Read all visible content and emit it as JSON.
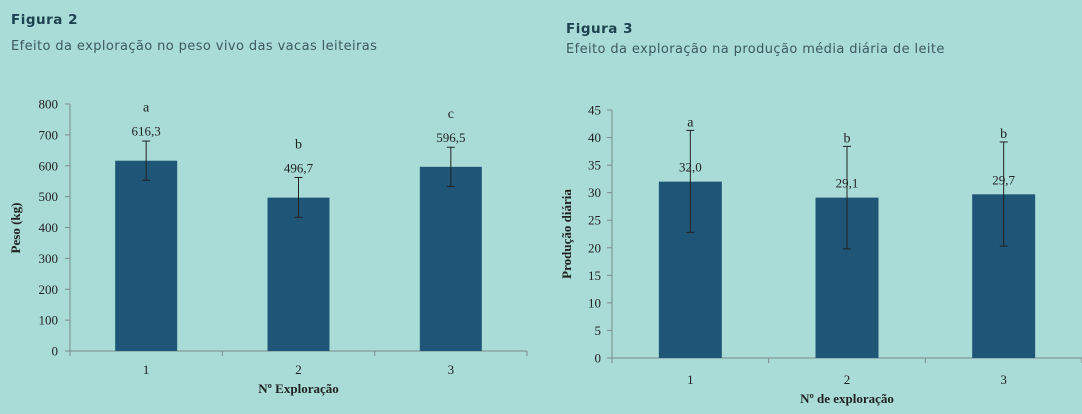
{
  "figures": [
    {
      "heading": "Figura 2",
      "subtitle": "Efeito da exploração no peso vivo das vacas leiteiras"
    },
    {
      "heading": "Figura 3",
      "subtitle": "Efeito da exploração na produção média diária de leite"
    }
  ],
  "colors": {
    "bar": "#1f5677",
    "axis": "#7d8a8c",
    "background": "#a9dcd6"
  },
  "chart_data": [
    {
      "type": "bar",
      "title": "Efeito da exploração no peso vivo das vacas leiteiras",
      "categories": [
        "1",
        "2",
        "3"
      ],
      "values": [
        616.3,
        496.7,
        596.5
      ],
      "value_labels": [
        "616,3",
        "496,7",
        "596,5"
      ],
      "error_low": [
        553,
        433,
        533
      ],
      "error_high": [
        680,
        562,
        660
      ],
      "significance_letters": [
        "a",
        "b",
        "c"
      ],
      "ylim": [
        0,
        800
      ],
      "yticks": [
        "0",
        "100",
        "200",
        "300",
        "400",
        "500",
        "600",
        "700",
        "800"
      ],
      "xlabel": "Nº Exploração",
      "ylabel": "Peso (kg)",
      "grid": false
    },
    {
      "type": "bar",
      "title": "Efeito da exploração na produção média diária de leite",
      "categories": [
        "1",
        "2",
        "3"
      ],
      "values": [
        32.0,
        29.1,
        29.7
      ],
      "value_labels": [
        "32,0",
        "29,1",
        "29,7"
      ],
      "error_low": [
        22.8,
        19.8,
        20.3
      ],
      "error_high": [
        41.3,
        38.4,
        39.2
      ],
      "significance_letters": [
        "a",
        "b",
        "b"
      ],
      "ylim": [
        0,
        45
      ],
      "yticks": [
        "0",
        "5",
        "10",
        "15",
        "20",
        "25",
        "30",
        "35",
        "40",
        "45"
      ],
      "xlabel": "Nº de exploração",
      "ylabel": "Produção diária",
      "grid": false
    }
  ]
}
